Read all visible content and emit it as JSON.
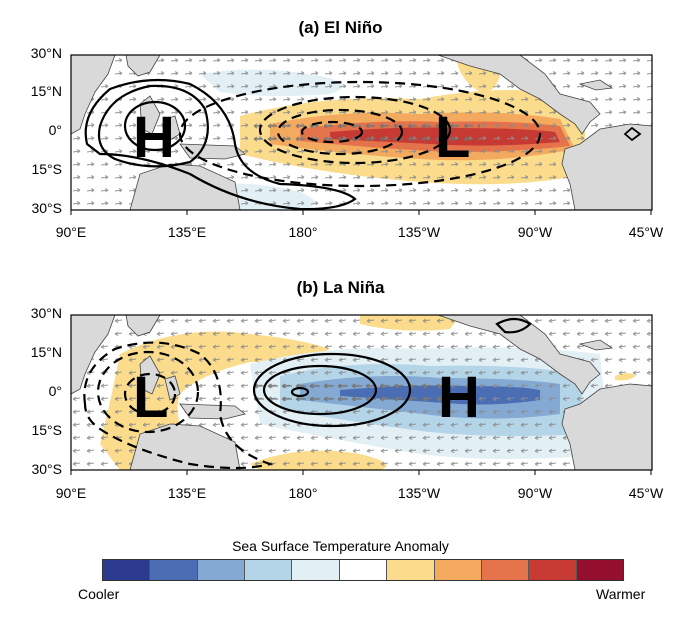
{
  "panels": [
    {
      "title": "(a) El Niño",
      "high_label": "H",
      "low_label": "L"
    },
    {
      "title": "(b) La Niña",
      "high_label": "H",
      "low_label": "L"
    }
  ],
  "lat_ticks": [
    "30°N",
    "15°N",
    "0°",
    "15°S",
    "30°S"
  ],
  "lon_ticks": [
    "90°E",
    "135°E",
    "180°",
    "135°W",
    "90°W",
    "45°W"
  ],
  "colorbar": {
    "title": "Sea Surface Temperature Anomaly",
    "low_label": "Cooler",
    "high_label": "Warmer",
    "colors": [
      "#2c3a8f",
      "#4b6db3",
      "#84a9d2",
      "#b4d4e7",
      "#e2f0f6",
      "#ffffff",
      "#fbdc8c",
      "#f3aa5f",
      "#e4724a",
      "#c73a33",
      "#930f2d"
    ]
  },
  "colors": {
    "land": "#d9d9d9",
    "contour": "#000000",
    "wind_vector": "#8c8c8c"
  }
}
